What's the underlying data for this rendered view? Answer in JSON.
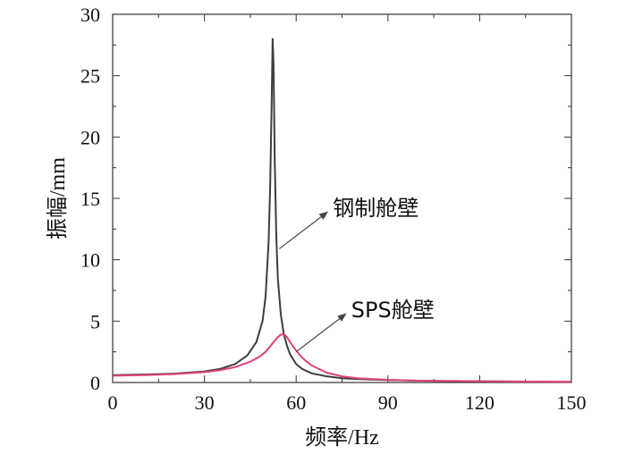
{
  "chart_data": {
    "type": "line",
    "xlabel": "频率/Hz",
    "ylabel": "振幅/mm",
    "xlim": [
      0,
      150
    ],
    "ylim": [
      0,
      30
    ],
    "xticks": [
      "0",
      "30",
      "60",
      "90",
      "120",
      "150"
    ],
    "yticks": [
      "0",
      "5",
      "10",
      "15",
      "20",
      "25",
      "30"
    ],
    "grid": false,
    "series": [
      {
        "name": "钢制舱壁",
        "color": "#3a3f3f",
        "x": [
          0,
          10,
          20,
          30,
          35,
          40,
          44,
          47,
          49,
          50,
          51,
          51.5,
          52,
          52.3,
          52.6,
          53,
          53.5,
          54,
          55,
          56,
          57,
          58,
          60,
          62,
          65,
          70,
          75,
          80,
          90,
          100,
          110,
          120,
          130,
          140,
          150
        ],
        "y": [
          0.6,
          0.65,
          0.72,
          0.9,
          1.1,
          1.5,
          2.2,
          3.3,
          5.0,
          7.0,
          11.5,
          16.0,
          23.0,
          28.0,
          26.0,
          18.0,
          12.0,
          8.5,
          5.5,
          3.9,
          3.0,
          2.3,
          1.5,
          1.1,
          0.75,
          0.5,
          0.35,
          0.28,
          0.2,
          0.15,
          0.12,
          0.1,
          0.08,
          0.06,
          0.05
        ]
      },
      {
        "name": "SPS舱壁",
        "color": "#e0407a",
        "x": [
          0,
          10,
          20,
          30,
          35,
          40,
          45,
          48,
          50,
          52,
          54,
          55,
          56,
          57,
          58,
          60,
          62,
          65,
          70,
          75,
          80,
          90,
          100,
          110,
          120,
          130,
          140,
          150
        ],
        "y": [
          0.55,
          0.6,
          0.68,
          0.85,
          1.0,
          1.25,
          1.7,
          2.1,
          2.5,
          3.1,
          3.7,
          3.9,
          3.95,
          3.7,
          3.3,
          2.6,
          2.0,
          1.4,
          0.8,
          0.5,
          0.35,
          0.22,
          0.15,
          0.12,
          0.1,
          0.08,
          0.06,
          0.05
        ]
      }
    ],
    "annotations": [
      {
        "text": "钢制舱壁",
        "x": 72,
        "y": 13.6,
        "arrow_to": [
          54.5,
          10.9
        ]
      },
      {
        "text": "SPS舱壁",
        "x": 78,
        "y": 5.3,
        "arrow_to": [
          60,
          2.5
        ]
      }
    ]
  }
}
